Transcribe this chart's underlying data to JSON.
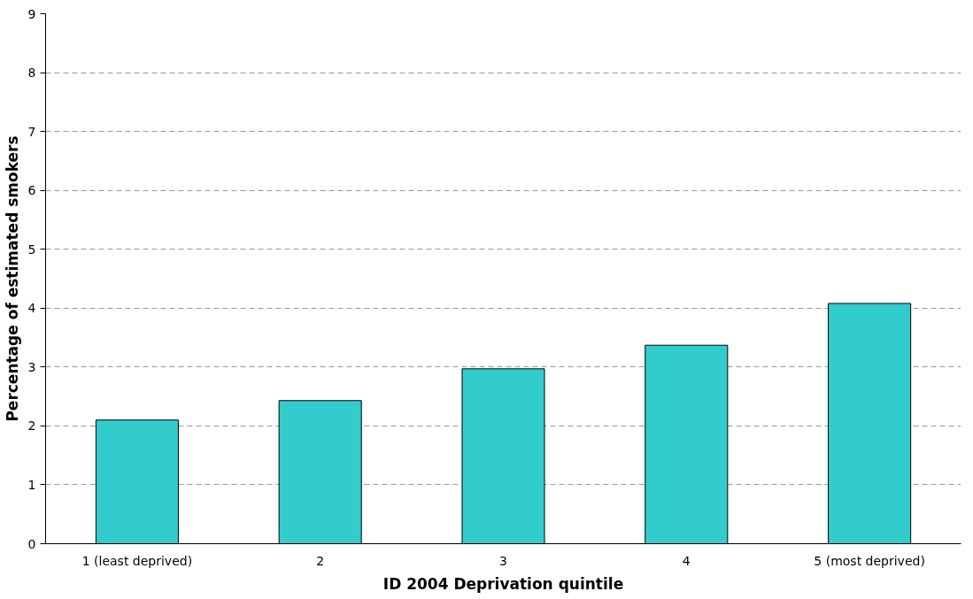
{
  "chart_data": {
    "type": "bar",
    "xlabel": "ID 2004 Deprivation quintile",
    "ylabel": "Percentage of estimated smokers",
    "categories": [
      "1 (least deprived)",
      "2",
      "3",
      "4",
      "5 (most deprived)"
    ],
    "values": [
      2.1,
      2.43,
      2.97,
      3.37,
      4.08
    ],
    "color": "#33cccc",
    "ylim": [
      0,
      9
    ],
    "yticks": [
      0,
      1,
      2,
      3,
      4,
      5,
      6,
      7,
      8,
      9
    ],
    "grid": "y"
  }
}
